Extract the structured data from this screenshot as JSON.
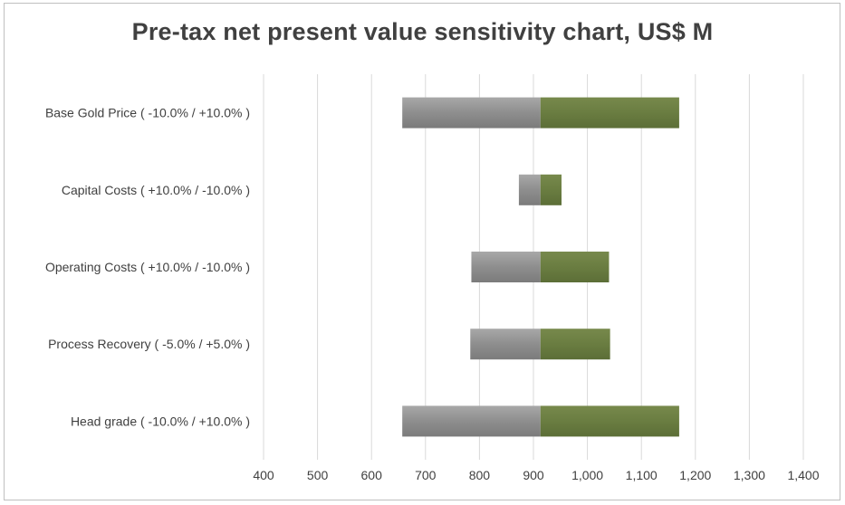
{
  "chart_data": {
    "type": "bar",
    "orientation": "horizontal",
    "chart_subtype": "tornado",
    "title": "Pre-tax net present value sensitivity chart, US$ M",
    "xlabel": "",
    "ylabel": "",
    "xlim": [
      400,
      1400
    ],
    "x_ticks": [
      400,
      500,
      600,
      700,
      800,
      900,
      1000,
      1100,
      1200,
      1300,
      1400
    ],
    "x_tick_labels": [
      "400",
      "500",
      "600",
      "700",
      "800",
      "900",
      "1,000",
      "1,100",
      "1,200",
      "1,300",
      "1,400"
    ],
    "grid": "vertical",
    "legend": "none",
    "base_value": 913,
    "categories": [
      "Base Gold Price ( -10.0% / +10.0% )",
      "Capital Costs ( +10.0% / -10.0% )",
      "Operating Costs ( +10.0% / -10.0% )",
      "Process Recovery ( -5.0% / +5.0% )",
      "Head grade ( -10.0% / +10.0% )"
    ],
    "series": [
      {
        "color": "#8c8c8c",
        "values": [
          657,
          873,
          785,
          783,
          657
        ]
      },
      {
        "color": "#6a7d41",
        "values": [
          1170,
          952,
          1040,
          1042,
          1170
        ]
      }
    ]
  }
}
